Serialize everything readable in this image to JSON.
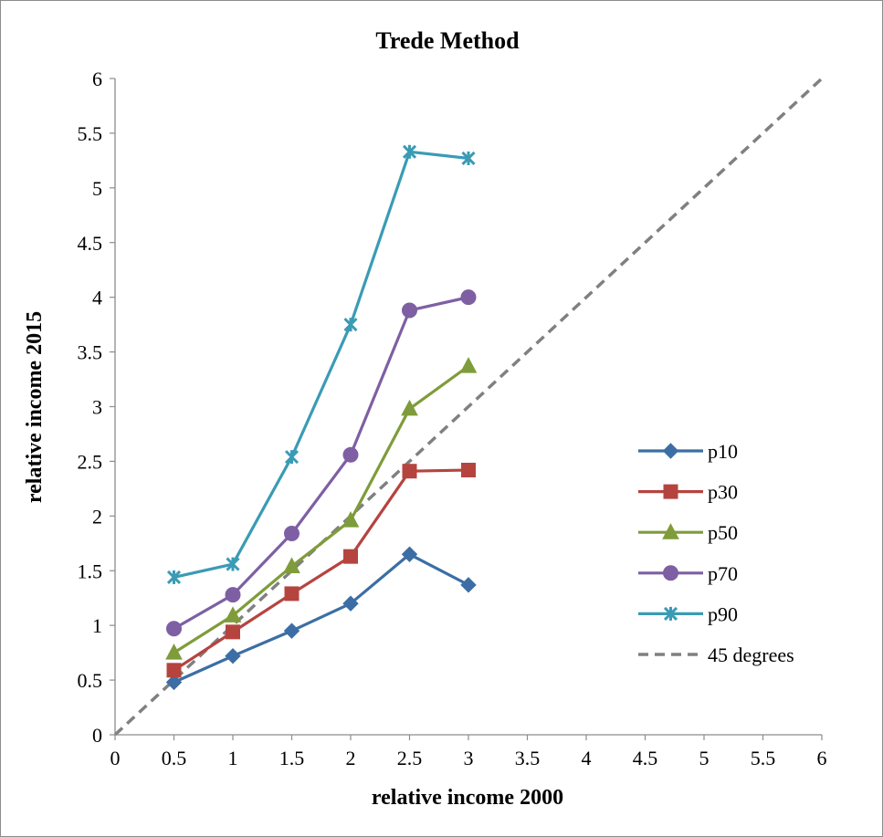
{
  "chart_data": {
    "type": "line",
    "title": "Trede Method",
    "xlabel": "relative income 2000",
    "ylabel": "relative income 2015",
    "xlim": [
      0,
      6
    ],
    "ylim": [
      0,
      6
    ],
    "x_ticks": [
      "0",
      "0.5",
      "1",
      "1.5",
      "2",
      "2.5",
      "3",
      "3.5",
      "4",
      "4.5",
      "5",
      "5.5",
      "6"
    ],
    "y_ticks": [
      "0",
      "0.5",
      "1",
      "1.5",
      "2",
      "2.5",
      "3",
      "3.5",
      "4",
      "4.5",
      "5",
      "5.5",
      "6"
    ],
    "grid": false,
    "legend_position": "right",
    "x": [
      0.5,
      1,
      1.5,
      2,
      2.5,
      3
    ],
    "series": [
      {
        "name": "p10",
        "color": "#3c6ea5",
        "marker": "diamond",
        "values": [
          0.48,
          0.72,
          0.95,
          1.2,
          1.65,
          1.37
        ]
      },
      {
        "name": "p30",
        "color": "#b5443f",
        "marker": "square",
        "values": [
          0.59,
          0.94,
          1.29,
          1.63,
          2.41,
          2.42
        ]
      },
      {
        "name": "p50",
        "color": "#7f9c3a",
        "marker": "triangle",
        "values": [
          0.75,
          1.09,
          1.54,
          1.96,
          2.98,
          3.37
        ]
      },
      {
        "name": "p70",
        "color": "#7e5fa3",
        "marker": "circle",
        "values": [
          0.97,
          1.28,
          1.84,
          2.56,
          3.88,
          4.0
        ]
      },
      {
        "name": "p90",
        "color": "#3a9bb5",
        "marker": "star",
        "values": [
          1.44,
          1.56,
          2.54,
          3.75,
          5.33,
          5.27
        ]
      }
    ],
    "reference_line": {
      "name": "45 degrees",
      "color": "#808080",
      "style": "dashed",
      "x": [
        0,
        6
      ],
      "y": [
        0,
        6
      ]
    }
  }
}
